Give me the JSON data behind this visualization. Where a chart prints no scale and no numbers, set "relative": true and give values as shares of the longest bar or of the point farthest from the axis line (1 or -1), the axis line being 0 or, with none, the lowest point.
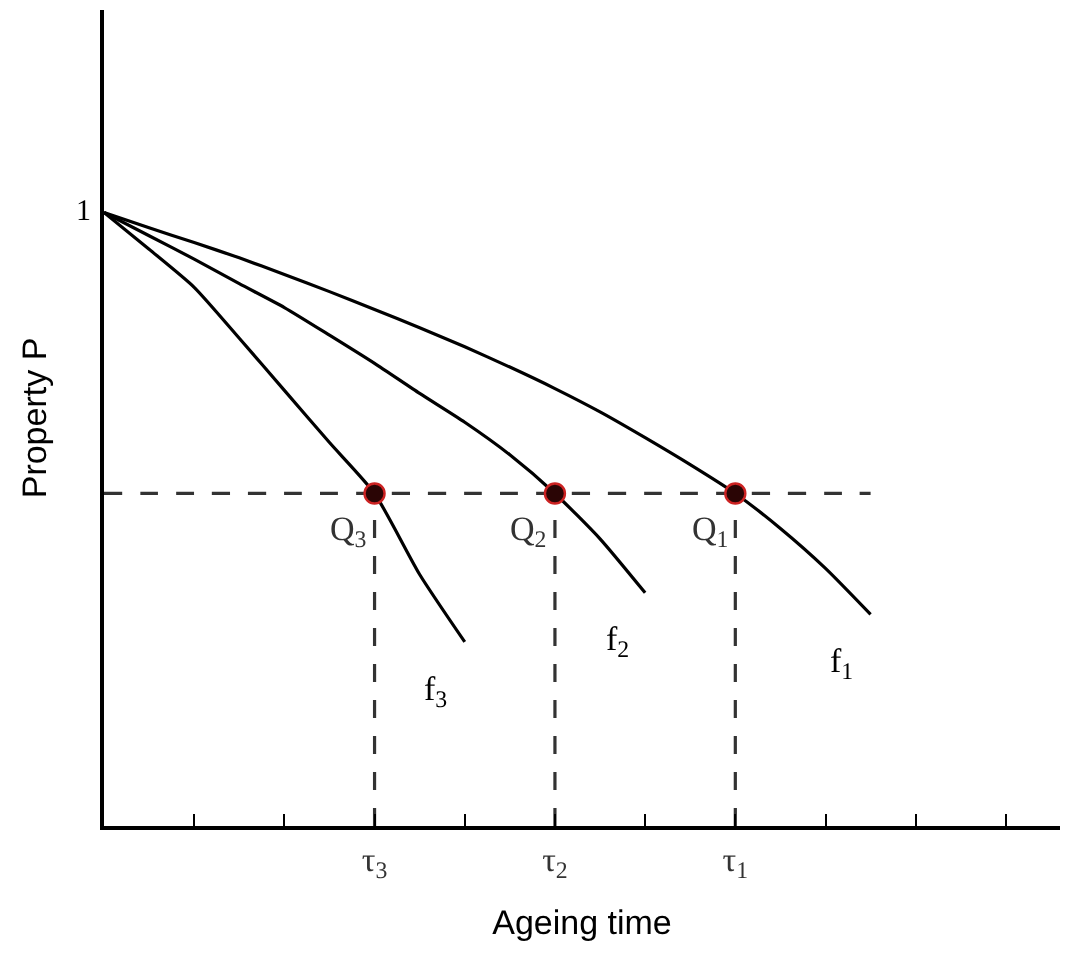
{
  "chart_data": {
    "type": "line",
    "relative": true,
    "xlabel": "Ageing time",
    "ylabel": "Property P",
    "categories": [
      null,
      null,
      null,
      null,
      null,
      null,
      "τ$_{3}$",
      null,
      null,
      null,
      "τ$_{2}$",
      null,
      null,
      null,
      "τ$_{1}$",
      null,
      null,
      null,
      null,
      null,
      null
    ],
    "series": [
      {
        "name": "f$_{1}$",
        "color": "#000000",
        "values": [
          1,
          0.975,
          0.951,
          0.926,
          0.899,
          0.871,
          0.842,
          0.812,
          0.781,
          0.748,
          0.713,
          0.675,
          0.633,
          0.589,
          0.542,
          0.485,
          0.42,
          0.345,
          null,
          null,
          null
        ]
      },
      {
        "name": "f$_{2}$",
        "color": "#000000",
        "values": [
          1,
          0.962,
          0.924,
          0.884,
          0.845,
          0.8,
          0.754,
          0.705,
          0.658,
          0.605,
          0.542,
          0.468,
          0.38,
          null,
          null,
          null,
          null,
          null,
          null,
          null,
          null
        ]
      },
      {
        "name": "f$_{3}$",
        "color": "#000000",
        "values": [
          1,
          0.94,
          0.878,
          0.795,
          0.71,
          0.625,
          0.542,
          0.41,
          0.3,
          null,
          null,
          null,
          null,
          null,
          null,
          null,
          null,
          null,
          null,
          null,
          null
        ]
      },
      {
        "line_style": "dashed",
        "color": "#333333",
        "values": [
          0.542,
          0.542,
          0.542,
          0.542,
          0.542,
          0.542,
          0.542,
          0.542,
          0.542,
          0.542,
          0.542,
          0.542,
          0.542,
          0.542,
          0.542,
          0.542,
          0.542,
          0.542,
          null,
          null,
          null
        ]
      },
      {
        "line_style": "dashed",
        "color": "#333333",
        "x": [
          "τ$_{3}$",
          "τ$_{3}$"
        ],
        "values": [
          0,
          0.542
        ]
      },
      {
        "line_style": "dashed",
        "color": "#333333",
        "x": [
          "τ$_{2}$",
          "τ$_{2}$"
        ],
        "values": [
          0,
          0.542
        ]
      },
      {
        "line_style": "dashed",
        "color": "#333333",
        "x": [
          "τ$_{1}$",
          "τ$_{1}$"
        ],
        "values": [
          0,
          0.542
        ]
      },
      {
        "type": "scatter",
        "marker": "circle",
        "color": "#2a0505",
        "x": [
          "τ$_{3}$",
          "τ$_{2}$",
          "τ$_{1}$"
        ],
        "values": [
          0.542,
          0.542,
          0.542
        ]
      }
    ],
    "annotations": [
      "1",
      {
        "text": "Q$_{3}$",
        "x": "τ$_{3}$",
        "y": 0.542
      },
      {
        "text": "Q$_{2}$",
        "x": "τ$_{2}$",
        "y": 0.542
      },
      {
        "text": "Q$_{1}$",
        "x": "τ$_{1}$",
        "y": 0.542
      }
    ]
  }
}
